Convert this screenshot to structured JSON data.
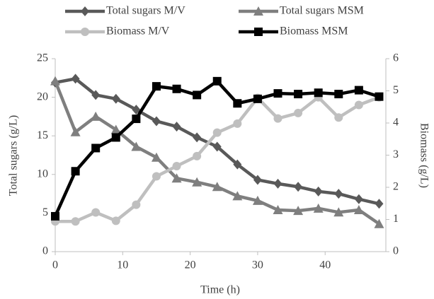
{
  "chart_data": {
    "type": "line",
    "x_label": "Time (h)",
    "y_label": "Total sugars (g/L)",
    "y2_label": "Biomass (g/L)",
    "x": [
      0,
      3,
      6,
      9,
      12,
      15,
      18,
      21,
      24,
      27,
      30,
      33,
      36,
      39,
      42,
      45,
      48
    ],
    "xlim": [
      0,
      49
    ],
    "xticks": [
      0,
      10,
      20,
      30,
      40
    ],
    "ylim": [
      0,
      25
    ],
    "yticks": [
      0,
      5,
      10,
      15,
      20,
      25
    ],
    "y2lim": [
      0,
      6
    ],
    "y2ticks": [
      0,
      1,
      2,
      3,
      4,
      5,
      6
    ],
    "grid": false,
    "legend": "top",
    "series": [
      {
        "name": "Total sugars M/V",
        "color": "#595959",
        "marker": "diamond",
        "values": [
          21.9,
          22.4,
          20.3,
          19.8,
          18.4,
          16.9,
          16.2,
          14.8,
          13.6,
          11.3,
          9.3,
          8.8,
          8.4,
          7.8,
          7.5,
          6.8,
          6.2
        ]
      },
      {
        "name": "Total sugars MSM",
        "color": "#7f7f7f",
        "marker": "triangle",
        "values": [
          22.1,
          15.5,
          17.5,
          15.8,
          13.6,
          12.2,
          9.5,
          9.0,
          8.4,
          7.2,
          6.6,
          5.4,
          5.3,
          5.6,
          5.1,
          5.4,
          3.6
        ]
      },
      {
        "name": "Biomass M/V",
        "color": "#bfbfbf",
        "marker": "circle",
        "axis": "y2",
        "values": [
          0.94,
          0.94,
          1.22,
          0.96,
          1.46,
          2.34,
          2.66,
          2.97,
          3.7,
          3.98,
          4.78,
          4.14,
          4.31,
          4.8,
          4.17,
          4.56,
          4.8
        ]
      },
      {
        "name": "Biomass MSM",
        "color": "#000000",
        "marker": "square",
        "axis": "y2",
        "values": [
          1.1,
          2.5,
          3.22,
          3.55,
          4.13,
          5.14,
          5.06,
          4.87,
          5.3,
          4.61,
          4.75,
          4.92,
          4.9,
          4.94,
          4.9,
          5.02,
          4.82
        ]
      }
    ]
  }
}
